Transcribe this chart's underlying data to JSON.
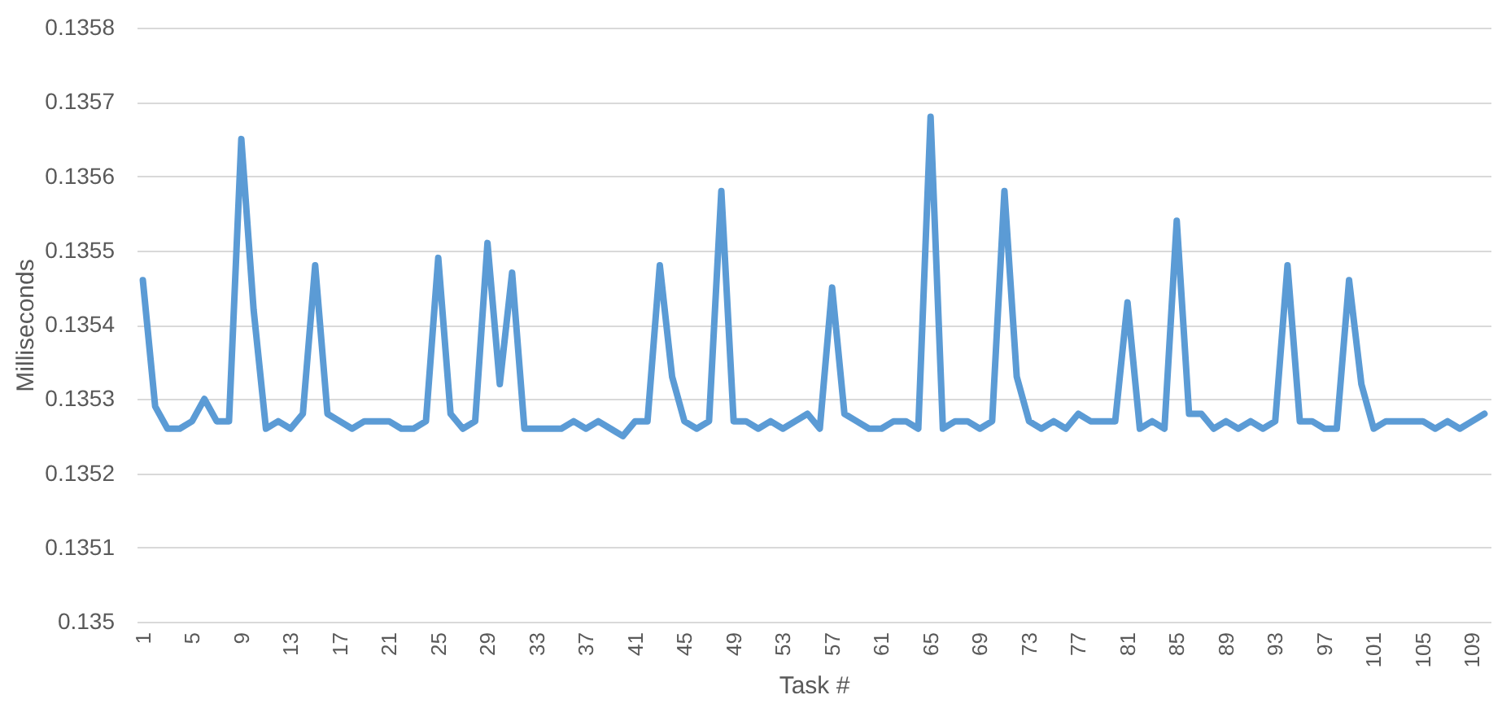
{
  "chart_data": {
    "type": "line",
    "xlabel": "Task #",
    "ylabel": "Milliseconds",
    "categories": [
      "1",
      null,
      null,
      null,
      "5",
      null,
      null,
      null,
      "9",
      null,
      null,
      null,
      "13",
      null,
      null,
      null,
      "17",
      null,
      null,
      null,
      "21",
      null,
      null,
      null,
      "25",
      null,
      null,
      null,
      "29",
      null,
      null,
      null,
      "33",
      null,
      null,
      null,
      "37",
      null,
      null,
      null,
      "41",
      null,
      null,
      null,
      "45",
      null,
      null,
      null,
      "49",
      null,
      null,
      null,
      "53",
      null,
      null,
      null,
      "57",
      null,
      null,
      null,
      "61",
      null,
      null,
      null,
      "65",
      null,
      null,
      null,
      "69",
      null,
      null,
      null,
      "73",
      null,
      null,
      null,
      "77",
      null,
      null,
      null,
      "81",
      null,
      null,
      null,
      "85",
      null,
      null,
      null,
      "89",
      null,
      null,
      null,
      "93",
      null,
      null,
      null,
      "97",
      null,
      null,
      null,
      "101",
      null,
      null,
      null,
      "105",
      null,
      null,
      null,
      "109",
      null
    ],
    "series": [
      {
        "color": "#5b9bd5",
        "values": [
          0.13546,
          0.13529,
          0.13526,
          0.13526,
          0.13527,
          0.1353,
          0.13527,
          0.13527,
          0.13565,
          0.13542,
          0.13526,
          0.13527,
          0.13526,
          0.13528,
          0.13548,
          0.13528,
          0.13527,
          0.13526,
          0.13527,
          0.13527,
          0.13527,
          0.13526,
          0.13526,
          0.13527,
          0.13549,
          0.13528,
          0.13526,
          0.13527,
          0.13551,
          0.13532,
          0.13547,
          0.13526,
          0.13526,
          0.13526,
          0.13526,
          0.13527,
          0.13526,
          0.13527,
          0.13526,
          0.13525,
          0.13527,
          0.13527,
          0.13548,
          0.13533,
          0.13527,
          0.13526,
          0.13527,
          0.13558,
          0.13527,
          0.13527,
          0.13526,
          0.13527,
          0.13526,
          0.13527,
          0.13528,
          0.13526,
          0.13545,
          0.13528,
          0.13527,
          0.13526,
          0.13526,
          0.13527,
          0.13527,
          0.13526,
          0.13568,
          0.13526,
          0.13527,
          0.13527,
          0.13526,
          0.13527,
          0.13558,
          0.13533,
          0.13527,
          0.13526,
          0.13527,
          0.13526,
          0.13528,
          0.13527,
          0.13527,
          0.13527,
          0.13543,
          0.13526,
          0.13527,
          0.13526,
          0.13554,
          0.13528,
          0.13528,
          0.13526,
          0.13527,
          0.13526,
          0.13527,
          0.13526,
          0.13527,
          0.13548,
          0.13527,
          0.13527,
          0.13526,
          0.13526,
          0.13546,
          0.13532,
          0.13526,
          0.13527,
          0.13527,
          0.13527,
          0.13527,
          0.13526,
          0.13527,
          0.13526,
          0.13527,
          0.13528
        ]
      }
    ],
    "ylim": [
      0.135,
      0.1358
    ],
    "yticks": [
      0.135,
      0.1351,
      0.1352,
      0.1353,
      0.1354,
      0.1355,
      0.1356,
      0.1357,
      0.1358
    ],
    "grid": "y",
    "marker": "none",
    "line_style": "solid"
  }
}
